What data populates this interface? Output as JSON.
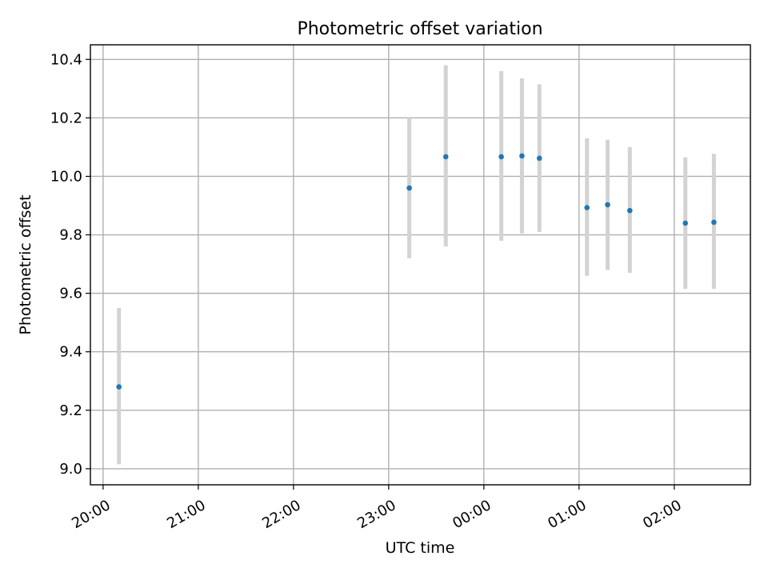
{
  "chart_data": {
    "type": "scatter",
    "title": "Photometric offset variation",
    "xlabel": "UTC time",
    "ylabel": "Photometric offset",
    "xlim": [
      "19:52",
      "02:48"
    ],
    "ylim": [
      8.945,
      10.45
    ],
    "grid": true,
    "x_axis": "time of day (UTC), crossing midnight",
    "x_ticks": [
      "20:00",
      "21:00",
      "22:00",
      "23:00",
      "00:00",
      "01:00",
      "02:00"
    ],
    "y_ticks": [
      "9.0",
      "9.2",
      "9.4",
      "9.6",
      "9.8",
      "10.0",
      "10.2",
      "10.4"
    ],
    "y_tick_values": [
      9.0,
      9.2,
      9.4,
      9.6,
      9.8,
      10.0,
      10.2,
      10.4
    ],
    "point_color": "#1f77b4",
    "errorbar_color": "#d3d3d3",
    "points": [
      {
        "time": "20:10",
        "y": 9.28,
        "y_low": 9.015,
        "y_high": 9.55
      },
      {
        "time": "23:13",
        "y": 9.96,
        "y_low": 9.72,
        "y_high": 10.2
      },
      {
        "time": "23:36",
        "y": 10.067,
        "y_low": 9.76,
        "y_high": 10.38
      },
      {
        "time": "00:11",
        "y": 10.067,
        "y_low": 9.78,
        "y_high": 10.36
      },
      {
        "time": "00:24",
        "y": 10.07,
        "y_low": 9.805,
        "y_high": 10.335
      },
      {
        "time": "00:35",
        "y": 10.062,
        "y_low": 9.81,
        "y_high": 10.315
      },
      {
        "time": "01:05",
        "y": 9.893,
        "y_low": 9.66,
        "y_high": 10.13
      },
      {
        "time": "01:18",
        "y": 9.903,
        "y_low": 9.68,
        "y_high": 10.125
      },
      {
        "time": "01:32",
        "y": 9.883,
        "y_low": 9.67,
        "y_high": 10.1
      },
      {
        "time": "02:07",
        "y": 9.84,
        "y_low": 9.615,
        "y_high": 10.065
      },
      {
        "time": "02:25",
        "y": 9.843,
        "y_low": 9.615,
        "y_high": 10.077
      }
    ]
  }
}
